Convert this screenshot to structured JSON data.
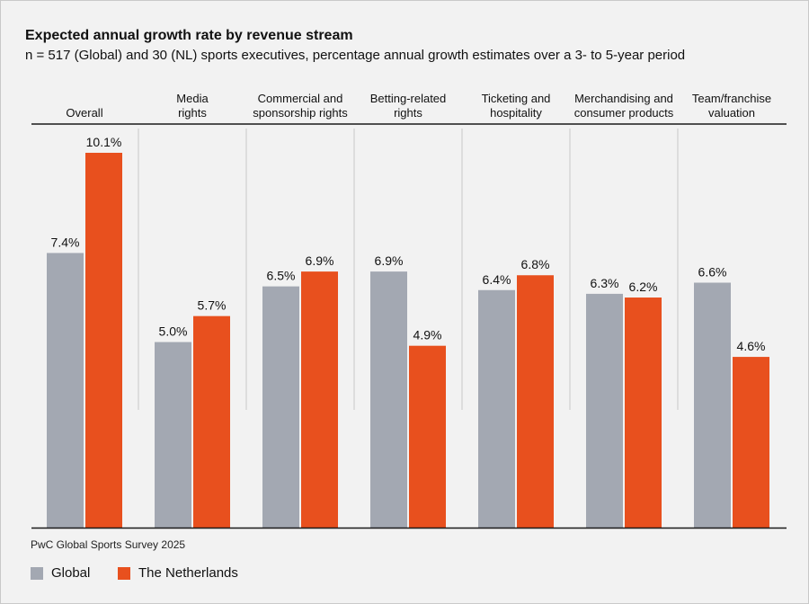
{
  "title": "Expected annual growth rate by revenue stream",
  "subtitle": "n = 517 (Global) and 30 (NL) sports executives, percentage annual growth estimates over a 3- to 5-year period",
  "source": "PwC Global Sports Survey 2025",
  "colors": {
    "global": "#a3a8b2",
    "netherlands": "#e8501e",
    "divider": "#c8c8c8",
    "axis": "#1a1a1a"
  },
  "chart_data": {
    "type": "bar",
    "categories": [
      [
        "Overall"
      ],
      [
        "Media",
        "rights"
      ],
      [
        "Commercial and",
        "sponsorship rights"
      ],
      [
        "Betting-related",
        "rights"
      ],
      [
        "Ticketing and",
        "hospitality"
      ],
      [
        "Merchandising and",
        "consumer products"
      ],
      [
        "Team/franchise",
        "valuation"
      ]
    ],
    "series": [
      {
        "name": "Global",
        "values": [
          7.4,
          5.0,
          6.5,
          6.9,
          6.4,
          6.3,
          6.6
        ],
        "labels": [
          "7.4%",
          "5.0%",
          "6.5%",
          "6.9%",
          "6.4%",
          "6.3%",
          "6.6%"
        ]
      },
      {
        "name": "The Netherlands",
        "values": [
          10.1,
          5.7,
          6.9,
          4.9,
          6.8,
          6.2,
          4.6
        ],
        "labels": [
          "10.1%",
          "5.7%",
          "6.9%",
          "4.9%",
          "6.8%",
          "6.2%",
          "4.6%"
        ]
      }
    ],
    "ylim": [
      0,
      10.1
    ],
    "grid": false,
    "legend": "bottom-left"
  }
}
